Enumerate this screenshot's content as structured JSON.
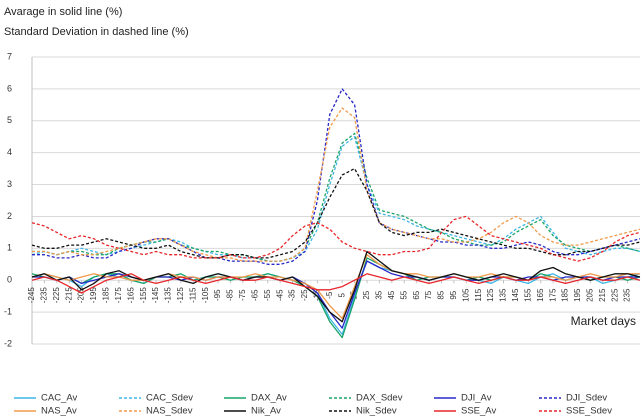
{
  "chart_data": {
    "type": "line",
    "title": "Avarage in solid line (%)",
    "subtitle": "Standard Deviation in dashed line (%)",
    "xlabel": "Market days",
    "x": [
      -245,
      -235,
      -225,
      -215,
      -205,
      -195,
      -185,
      -175,
      -165,
      -155,
      -145,
      -135,
      -125,
      -115,
      -105,
      -95,
      -85,
      -75,
      -65,
      -55,
      -45,
      -35,
      -25,
      -15,
      -5,
      5,
      15,
      25,
      35,
      45,
      55,
      65,
      75,
      85,
      95,
      105,
      115,
      125,
      135,
      145,
      155,
      165,
      175,
      185,
      195,
      205,
      215,
      225,
      235,
      245
    ],
    "xlim": [
      -245,
      245
    ],
    "xticks": [
      -245,
      -235,
      -225,
      -215,
      -205,
      -195,
      -185,
      -175,
      -165,
      -155,
      -145,
      -135,
      -125,
      -115,
      -105,
      -95,
      -85,
      -75,
      -65,
      -55,
      -45,
      -35,
      -25,
      -15,
      -5,
      5,
      15,
      25,
      35,
      45,
      55,
      65,
      75,
      85,
      95,
      105,
      115,
      125,
      135,
      145,
      155,
      165,
      175,
      185,
      195,
      205,
      215,
      225,
      235
    ],
    "ylim": [
      -2,
      7
    ],
    "yticks": [
      -2,
      -1,
      0,
      1,
      2,
      3,
      4,
      5,
      6,
      7
    ],
    "grid": true,
    "legend": "bottom",
    "series": [
      {
        "name": "CAC_Av",
        "color": "#3fb6e6",
        "dash": false,
        "values": [
          0.1,
          0.2,
          0.1,
          0,
          -0.2,
          0.1,
          0.2,
          0.1,
          0,
          -0.1,
          0.1,
          0.2,
          0.1,
          0,
          0.1,
          0.2,
          0.1,
          0,
          0.1,
          0.2,
          0.1,
          0,
          -0.1,
          -0.4,
          -1.2,
          -1.7,
          -0.5,
          0.6,
          0.4,
          0.3,
          0.2,
          0.1,
          0,
          0.1,
          0.2,
          0.1,
          0,
          -0.1,
          0.1,
          0,
          -0.1,
          0.1,
          0.2,
          0,
          0.1,
          0.1,
          -0.1,
          0,
          0.1,
          0.2
        ]
      },
      {
        "name": "CAC_Sdev",
        "color": "#3fb6e6",
        "dash": true,
        "values": [
          0.8,
          0.9,
          0.8,
          0.9,
          1.0,
          0.9,
          0.8,
          0.9,
          1.0,
          1.1,
          1.2,
          1.3,
          1.2,
          1.0,
          0.9,
          0.8,
          0.8,
          0.7,
          0.7,
          0.6,
          0.6,
          0.7,
          0.9,
          1.6,
          3.0,
          4.2,
          4.5,
          3.0,
          2.1,
          2.0,
          1.9,
          1.7,
          1.6,
          1.5,
          1.4,
          1.3,
          1.2,
          1.1,
          1.3,
          1.6,
          1.8,
          2.0,
          1.5,
          1.0,
          0.9,
          0.8,
          0.9,
          1.0,
          1.0,
          0.9
        ]
      },
      {
        "name": "DAX_Av",
        "color": "#1aa56a",
        "dash": false,
        "values": [
          0.2,
          0.1,
          0,
          0.1,
          -0.1,
          0.1,
          0.2,
          0.2,
          0,
          -0.1,
          0.1,
          0.1,
          0.2,
          0,
          0.1,
          0.1,
          0,
          0.1,
          0.1,
          0.2,
          0.1,
          0,
          -0.2,
          -0.5,
          -1.3,
          -1.8,
          -0.6,
          0.7,
          0.5,
          0.3,
          0.2,
          0,
          0.1,
          0.1,
          0.1,
          0,
          0.1,
          0,
          0.1,
          0.1,
          0,
          0.2,
          0.1,
          0,
          0.1,
          0,
          0.1,
          0.1,
          0,
          0.1
        ]
      },
      {
        "name": "DAX_Sdev",
        "color": "#1aa56a",
        "dash": true,
        "values": [
          0.9,
          0.9,
          0.8,
          0.9,
          0.9,
          0.8,
          0.8,
          1.0,
          1.1,
          1.2,
          1.2,
          1.3,
          1.1,
          1.0,
          0.9,
          0.9,
          0.8,
          0.8,
          0.7,
          0.6,
          0.6,
          0.7,
          1.0,
          1.8,
          3.2,
          4.3,
          4.6,
          3.2,
          2.2,
          2.1,
          2.0,
          1.8,
          1.6,
          1.5,
          1.3,
          1.2,
          1.1,
          1.1,
          1.2,
          1.5,
          1.7,
          1.9,
          1.4,
          1.1,
          1.0,
          0.9,
          1.0,
          1.1,
          1.0,
          0.9
        ]
      },
      {
        "name": "DJI_Av",
        "color": "#2828c8",
        "dash": false,
        "values": [
          0.1,
          0.1,
          0,
          0.1,
          -0.1,
          0,
          0.1,
          0.2,
          0.1,
          0,
          0.1,
          0.1,
          0,
          0.1,
          0,
          0.1,
          0.1,
          0,
          0.1,
          0.1,
          0,
          0.1,
          -0.1,
          -0.4,
          -1.0,
          -1.5,
          -0.4,
          0.6,
          0.4,
          0.2,
          0.1,
          0.1,
          0,
          0.1,
          0.1,
          0,
          0,
          0.1,
          0.1,
          0,
          0.1,
          0.1,
          0,
          0.1,
          0.1,
          0.1,
          0,
          0.1,
          0.1,
          0.1
        ]
      },
      {
        "name": "DJI_Sdev",
        "color": "#2828c8",
        "dash": true,
        "values": [
          0.8,
          0.8,
          0.7,
          0.7,
          0.8,
          0.7,
          0.7,
          0.9,
          1.0,
          1.2,
          1.3,
          1.3,
          1.1,
          0.9,
          0.7,
          0.7,
          0.6,
          0.6,
          0.6,
          0.5,
          0.5,
          0.6,
          0.9,
          2.5,
          5.2,
          6.0,
          5.5,
          3.0,
          1.8,
          1.6,
          1.5,
          1.4,
          1.3,
          1.2,
          1.2,
          1.1,
          1.1,
          1.0,
          1.0,
          1.1,
          1.2,
          1.1,
          0.9,
          0.8,
          0.8,
          0.9,
          1.0,
          1.1,
          1.2,
          1.3
        ]
      },
      {
        "name": "NAS_Av",
        "color": "#f09a4a",
        "dash": false,
        "values": [
          0.1,
          0.2,
          0.1,
          0,
          0.1,
          0.2,
          0.1,
          0.1,
          0,
          0,
          0.1,
          0.2,
          0.1,
          0.1,
          0,
          0.1,
          0.1,
          0.1,
          0.2,
          0.1,
          0.1,
          0,
          -0.1,
          -0.3,
          -0.8,
          -1.2,
          -0.2,
          0.8,
          0.5,
          0.3,
          0.2,
          0.2,
          0.1,
          0.1,
          0.2,
          0.1,
          0.1,
          0.2,
          0.1,
          0.1,
          0,
          0.1,
          0.1,
          0,
          0.1,
          0.2,
          0.1,
          0.1,
          0.2,
          0.2
        ]
      },
      {
        "name": "NAS_Sdev",
        "color": "#f09a4a",
        "dash": true,
        "values": [
          0.9,
          0.9,
          0.8,
          0.9,
          0.8,
          0.8,
          0.9,
          1.0,
          1.1,
          1.2,
          1.3,
          1.3,
          1.1,
          0.9,
          0.8,
          0.7,
          0.7,
          0.6,
          0.6,
          0.6,
          0.6,
          0.7,
          1.0,
          2.8,
          4.8,
          5.4,
          5.1,
          2.8,
          1.8,
          1.6,
          1.5,
          1.4,
          1.3,
          1.3,
          1.2,
          1.2,
          1.3,
          1.5,
          1.8,
          2.0,
          1.8,
          1.4,
          1.2,
          1.1,
          1.1,
          1.2,
          1.3,
          1.4,
          1.5,
          1.6
        ]
      },
      {
        "name": "Nik_Av",
        "color": "#111111",
        "dash": false,
        "values": [
          0.1,
          0.2,
          0,
          0.1,
          -0.3,
          -0.1,
          0.2,
          0.3,
          0.1,
          0,
          0.1,
          0.2,
          0,
          -0.1,
          0.1,
          0.2,
          0.1,
          0,
          0.1,
          0.1,
          0,
          0.1,
          -0.2,
          -0.5,
          -1.0,
          -1.3,
          -0.3,
          0.9,
          0.6,
          0.3,
          0.2,
          0.1,
          0,
          0.1,
          0.2,
          0.1,
          0,
          0.1,
          0.2,
          0.1,
          0,
          0.3,
          0.4,
          0.2,
          0.1,
          0,
          0.1,
          0.2,
          0.2,
          0.1
        ]
      },
      {
        "name": "Nik_Sdev",
        "color": "#111111",
        "dash": true,
        "values": [
          1.1,
          1.0,
          1.0,
          1.1,
          1.1,
          1.2,
          1.3,
          1.2,
          1.1,
          1.0,
          1.0,
          1.1,
          0.9,
          0.8,
          0.7,
          0.7,
          0.8,
          0.8,
          0.7,
          0.7,
          0.8,
          0.9,
          1.2,
          1.8,
          2.6,
          3.3,
          3.5,
          2.8,
          1.8,
          1.5,
          1.4,
          1.5,
          1.5,
          1.6,
          1.5,
          1.4,
          1.3,
          1.2,
          1.1,
          1.0,
          1.0,
          0.9,
          0.8,
          0.8,
          0.9,
          0.9,
          1.0,
          1.1,
          1.1,
          1.2
        ]
      },
      {
        "name": "SSE_Av",
        "color": "#e8262a",
        "dash": false,
        "values": [
          0,
          0.1,
          0,
          -0.2,
          -0.4,
          -0.2,
          0,
          0.1,
          0.2,
          0,
          -0.1,
          0,
          0.1,
          0,
          -0.1,
          0,
          0.1,
          0,
          0,
          0.1,
          0,
          -0.1,
          -0.2,
          -0.3,
          -0.3,
          -0.2,
          0,
          0.2,
          0.1,
          0,
          0.1,
          0,
          -0.1,
          0,
          0.1,
          0,
          -0.1,
          0,
          0.1,
          0,
          0,
          0.1,
          0,
          -0.1,
          0,
          0.1,
          0,
          0,
          0.1,
          0
        ]
      },
      {
        "name": "SSE_Sdev",
        "color": "#e8262a",
        "dash": true,
        "values": [
          1.8,
          1.7,
          1.5,
          1.3,
          1.4,
          1.3,
          1.1,
          1.0,
          0.9,
          0.8,
          0.9,
          0.8,
          0.8,
          0.7,
          0.7,
          0.7,
          0.8,
          0.7,
          0.7,
          0.8,
          1.0,
          1.4,
          1.7,
          1.8,
          1.6,
          1.2,
          1.0,
          0.9,
          0.8,
          0.8,
          0.9,
          0.9,
          1.0,
          1.5,
          1.9,
          2.0,
          1.7,
          1.4,
          1.3,
          1.2,
          1.1,
          1.0,
          0.8,
          0.7,
          0.6,
          0.7,
          0.9,
          1.2,
          1.4,
          1.5
        ]
      }
    ]
  }
}
